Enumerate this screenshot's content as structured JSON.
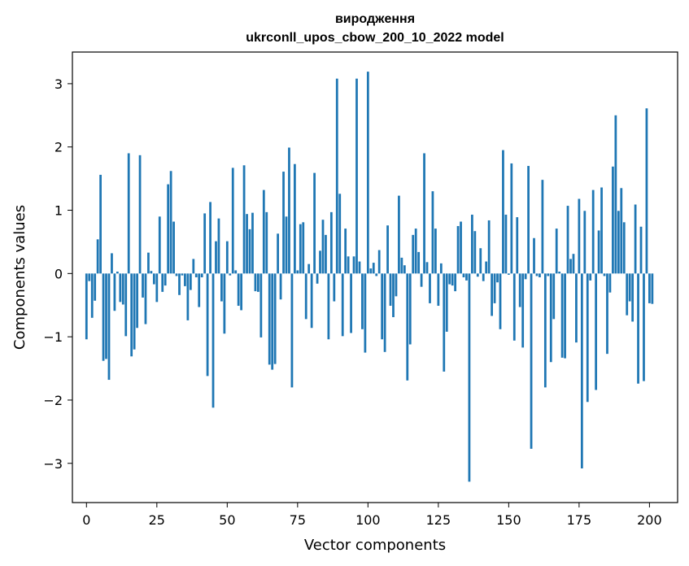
{
  "chart_data": {
    "type": "bar",
    "title_line1": "вироджeння",
    "title_line2": "ukrconll_upos_cbow_200_10_2022 model",
    "xlabel": "Vector components",
    "ylabel": "Components values",
    "xlim": [
      -5,
      210
    ],
    "ylim": [
      -3.62,
      3.5
    ],
    "xticks": [
      0,
      25,
      50,
      75,
      100,
      125,
      150,
      175,
      200
    ],
    "yticks": [
      -3,
      -2,
      -1,
      0,
      1,
      2,
      3
    ],
    "bar_color": "#1f77b4",
    "values": [
      -1.04,
      -0.12,
      -0.7,
      -0.43,
      0.54,
      1.56,
      -1.38,
      -1.35,
      -1.68,
      0.32,
      -0.59,
      0.03,
      -0.45,
      -0.49,
      -0.99,
      1.9,
      -1.31,
      -1.2,
      -0.86,
      1.87,
      -0.38,
      -0.8,
      0.33,
      0.04,
      -0.17,
      -0.45,
      0.9,
      -0.29,
      -0.19,
      1.41,
      1.62,
      0.82,
      -0.04,
      -0.34,
      -0.03,
      -0.2,
      -0.74,
      -0.26,
      0.23,
      -0.06,
      -0.53,
      -0.06,
      0.95,
      -1.62,
      1.13,
      -2.12,
      0.51,
      0.87,
      -0.44,
      -0.95,
      0.51,
      -0.03,
      1.67,
      0.05,
      -0.51,
      -0.58,
      1.71,
      0.94,
      0.7,
      0.96,
      -0.28,
      -0.29,
      -1.01,
      1.32,
      0.97,
      -1.44,
      -1.52,
      -1.43,
      0.63,
      -0.41,
      1.61,
      0.9,
      1.99,
      -1.8,
      1.73,
      0.05,
      0.78,
      0.81,
      -0.72,
      0.15,
      -0.86,
      1.59,
      -0.16,
      0.36,
      0.85,
      0.61,
      -1.04,
      0.97,
      -0.44,
      3.08,
      1.26,
      -0.99,
      0.71,
      0.27,
      -0.94,
      0.27,
      3.08,
      0.19,
      -0.88,
      -1.25,
      3.19,
      0.08,
      0.17,
      -0.04,
      0.37,
      -1.04,
      -1.24,
      0.76,
      -0.51,
      -0.69,
      -0.36,
      1.23,
      0.25,
      0.13,
      -1.69,
      -1.12,
      0.61,
      0.71,
      0.34,
      -0.21,
      1.9,
      0.18,
      -0.47,
      1.3,
      0.71,
      -0.51,
      0.16,
      -1.55,
      -0.92,
      -0.17,
      -0.19,
      -0.28,
      0.75,
      0.82,
      -0.06,
      -0.11,
      -3.29,
      0.93,
      0.67,
      -0.05,
      0.4,
      -0.12,
      0.19,
      0.84,
      -0.67,
      -0.47,
      -0.14,
      -0.88,
      1.95,
      0.93,
      -0.02,
      1.74,
      -1.06,
      0.89,
      -0.53,
      -1.17,
      -0.09,
      1.7,
      -2.77,
      0.56,
      -0.04,
      -0.06,
      1.48,
      -1.8,
      -0.04,
      -1.4,
      -0.72,
      0.71,
      0.03,
      -1.33,
      -1.34,
      1.07,
      0.23,
      0.31,
      -1.09,
      1.18,
      -3.08,
      0.99,
      -2.03,
      -0.11,
      1.32,
      -1.84,
      0.68,
      1.36,
      -0.04,
      -1.27,
      -0.3,
      1.69,
      2.5,
      0.99,
      1.35,
      0.81,
      -0.66,
      -0.44,
      -0.76,
      1.09,
      -1.74,
      0.74,
      -1.7,
      2.61,
      -0.47,
      -0.48
    ]
  }
}
